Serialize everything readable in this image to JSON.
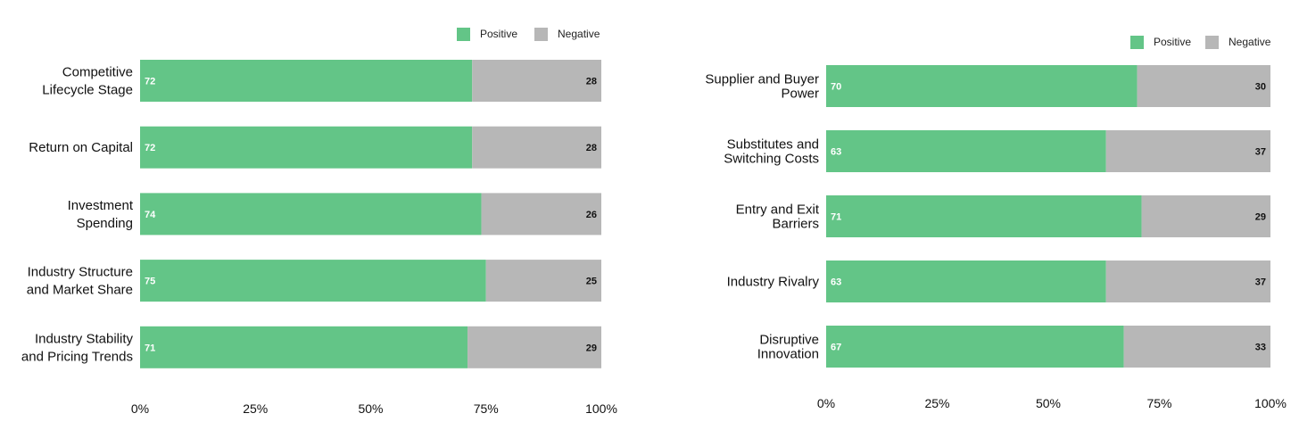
{
  "colors": {
    "positive": "#63c587",
    "negative": "#b7b7b7"
  },
  "chart_data": [
    {
      "type": "bar",
      "orientation": "horizontal",
      "stacked": true,
      "categories": [
        [
          "Competitive",
          "Lifecycle Stage"
        ],
        [
          "Return on Capital"
        ],
        [
          "Investment",
          "Spending"
        ],
        [
          "Industry Structure",
          "and Market Share"
        ],
        [
          "Industry Stability",
          "and Pricing Trends"
        ]
      ],
      "series": [
        {
          "name": "Positive",
          "values": [
            72,
            72,
            74,
            75,
            71
          ]
        },
        {
          "name": "Negative",
          "values": [
            28,
            28,
            26,
            25,
            29
          ]
        }
      ],
      "xticks": [
        "0%",
        "25%",
        "50%",
        "75%",
        "100%"
      ],
      "xlim": [
        0,
        100
      ],
      "legend": "top-right",
      "grid": false
    },
    {
      "type": "bar",
      "orientation": "horizontal",
      "stacked": true,
      "categories": [
        [
          "Supplier and Buyer",
          "Power"
        ],
        [
          "Substitutes and",
          "Switching Costs"
        ],
        [
          "Entry and Exit",
          "Barriers"
        ],
        [
          "Industry Rivalry"
        ],
        [
          "Disruptive",
          "Innovation"
        ]
      ],
      "series": [
        {
          "name": "Positive",
          "values": [
            70,
            63,
            71,
            63,
            67
          ]
        },
        {
          "name": "Negative",
          "values": [
            30,
            37,
            29,
            37,
            33
          ]
        }
      ],
      "xticks": [
        "0%",
        "25%",
        "50%",
        "75%",
        "100%"
      ],
      "xlim": [
        0,
        100
      ],
      "legend": "top-right",
      "grid": false
    }
  ]
}
